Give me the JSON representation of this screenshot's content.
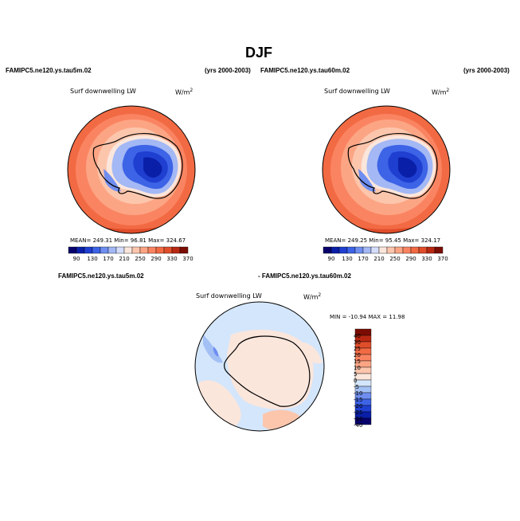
{
  "title": "DJF",
  "panels": [
    {
      "case_label": "FAMIPC5.ne120.ys.tau5m.02",
      "years": "(yrs 2000-2003)",
      "field": "Surf downwelling LW",
      "units": "W/m",
      "units_exp": "2",
      "stats": "MEAN= 249.31   Min= 96.81   Max= 324.67"
    },
    {
      "case_label": "FAMIPC5.ne120.ys.tau60m.02",
      "years": "(yrs 2000-2003)",
      "field": "Surf downwelling LW",
      "units": "W/m",
      "units_exp": "2",
      "stats": "MEAN= 249.25   Min= 95.45   Max= 324.17"
    }
  ],
  "diff": {
    "case_a": "FAMIPC5.ne120.ys.tau5m.02",
    "case_b": "- FAMIPC5.ne120.ys.tau60m.02",
    "field": "Surf downwelling LW",
    "units": "W/m",
    "units_exp": "2",
    "minmax": "MIN = -10.94  MAX =  11.98"
  },
  "colorbar_abs": {
    "labels": [
      "90",
      "130",
      "170",
      "210",
      "250",
      "290",
      "330",
      "370"
    ],
    "colors": [
      "#08006b",
      "#0a1fa8",
      "#1f3fd1",
      "#3d63e6",
      "#6f8ef0",
      "#a3b8f5",
      "#d4ddfb",
      "#fbe6dc",
      "#fcc6ad",
      "#fca584",
      "#fa8462",
      "#f26a43",
      "#e04d2a",
      "#b82812",
      "#7a0c04"
    ]
  },
  "colorbar_diff": {
    "labels": [
      "40",
      "30",
      "25",
      "20",
      "15",
      "10",
      "5",
      "0",
      "-5",
      "-10",
      "-15",
      "-20",
      "-25",
      "-30",
      "-40"
    ],
    "colors": [
      "#7a0c04",
      "#b82812",
      "#e04d2a",
      "#f26a43",
      "#fa8462",
      "#fca584",
      "#fcc6ad",
      "#fbe6dc",
      "#d4e6fb",
      "#a3c0f5",
      "#6f8ef0",
      "#3d63e6",
      "#1f3fd1",
      "#0a1fa8",
      "#08006b"
    ]
  }
}
